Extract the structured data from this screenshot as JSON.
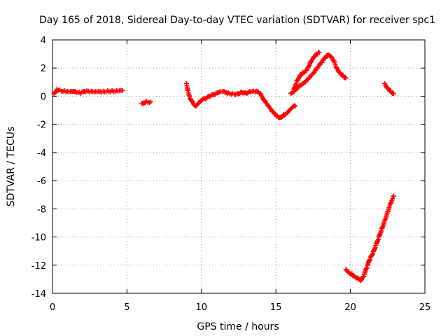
{
  "chart_data": {
    "type": "scatter",
    "title": "Day 165 of 2018, Sidereal Day-to-day VTEC variation (SDTVAR) for receiver spc1",
    "xlabel": "GPS time / hours",
    "ylabel": "SDTVAR / TECUs",
    "xlim": [
      0,
      25
    ],
    "ylim": [
      -14,
      4
    ],
    "xticks": [
      0,
      5,
      10,
      15,
      20,
      25
    ],
    "yticks": [
      -14,
      -12,
      -10,
      -8,
      -6,
      -4,
      -2,
      0,
      2,
      4
    ],
    "xtick_labels": [
      "0",
      "5",
      "10",
      "15",
      "20",
      "25"
    ],
    "ytick_labels": [
      "-14",
      "-12",
      "-10",
      "-8",
      "-6",
      "-4",
      "-2",
      "0",
      "2",
      "4"
    ],
    "grid": true,
    "marker": "+",
    "color": "#ff0000",
    "series": [
      {
        "name": "spc1",
        "segments": [
          {
            "x": [
              0.1,
              0.3,
              0.5,
              0.8,
              1.0,
              1.3,
              1.6,
              1.9,
              2.2,
              2.5,
              2.8,
              3.1,
              3.4,
              3.7,
              4.0,
              4.3,
              4.7
            ],
            "y": [
              0.2,
              0.5,
              0.45,
              0.4,
              0.35,
              0.35,
              0.25,
              0.2,
              0.3,
              0.3,
              0.3,
              0.35,
              0.35,
              0.4,
              0.4,
              0.4,
              0.4
            ]
          },
          {
            "x": [
              6.0,
              6.3,
              6.6
            ],
            "y": [
              -0.5,
              -0.35,
              -0.4
            ]
          },
          {
            "x": [
              9.0,
              9.1,
              9.2,
              9.4,
              9.6,
              9.8,
              10.0,
              10.3,
              10.6,
              10.9,
              11.2,
              11.5,
              11.8,
              12.1,
              12.4,
              12.7,
              13.0,
              13.3,
              13.6,
              13.9,
              14.2,
              14.5,
              14.8,
              15.1,
              15.3,
              15.5,
              15.7,
              15.9,
              16.1,
              16.3
            ],
            "y": [
              0.9,
              0.4,
              0.0,
              -0.4,
              -0.7,
              -0.5,
              -0.3,
              -0.2,
              0.0,
              0.1,
              0.3,
              0.35,
              0.25,
              0.2,
              0.2,
              0.3,
              0.2,
              0.3,
              0.3,
              0.2,
              -0.3,
              -0.7,
              -1.1,
              -1.4,
              -1.5,
              -1.3,
              -1.2,
              -1.0,
              -0.8,
              -0.7
            ]
          },
          {
            "x": [
              16.2,
              16.4,
              16.6,
              16.8,
              17.0,
              17.2,
              17.4,
              17.6,
              17.8,
              17.9
            ],
            "y": [
              0.5,
              1.1,
              1.5,
              1.7,
              1.8,
              2.1,
              2.5,
              2.8,
              3.0,
              3.1
            ]
          },
          {
            "x": [
              16.0,
              16.3,
              16.6,
              16.9,
              17.2,
              17.5,
              17.8,
              18.1,
              18.3,
              18.5,
              18.7,
              18.9,
              19.1,
              19.3,
              19.5,
              19.7
            ],
            "y": [
              0.2,
              0.5,
              0.8,
              1.0,
              1.3,
              1.6,
              2.0,
              2.4,
              2.7,
              2.9,
              2.8,
              2.5,
              2.0,
              1.7,
              1.5,
              1.3
            ]
          },
          {
            "x": [
              22.3,
              22.5,
              22.7,
              22.9
            ],
            "y": [
              0.9,
              0.6,
              0.4,
              0.2
            ]
          },
          {
            "x": [
              19.7,
              19.9,
              20.1,
              20.3,
              20.5,
              20.7,
              20.9,
              21.1,
              21.3,
              21.5,
              21.7,
              21.9,
              22.1,
              22.3,
              22.5,
              22.7,
              22.9
            ],
            "y": [
              -12.3,
              -12.5,
              -12.6,
              -12.8,
              -12.9,
              -13.1,
              -12.8,
              -12.2,
              -11.6,
              -11.2,
              -10.6,
              -10.0,
              -9.4,
              -8.8,
              -8.2,
              -7.6,
              -7.1
            ]
          }
        ]
      }
    ]
  }
}
